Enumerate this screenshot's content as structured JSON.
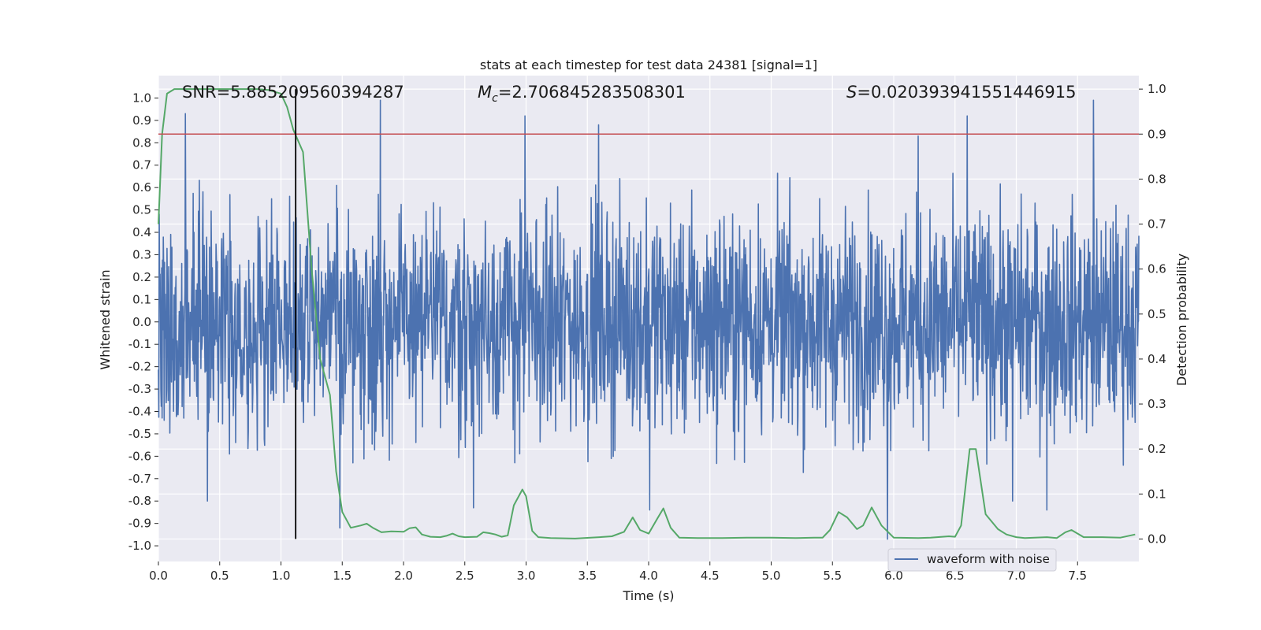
{
  "chart_data": {
    "type": "line",
    "title": "stats at each timestep for test data 24381 [signal=1]",
    "xlabel": "Time (s)",
    "ylabel": "Whitened strain",
    "y2label": "Detection probability",
    "xlim": [
      0,
      8
    ],
    "ylim": [
      -1.07,
      1.1
    ],
    "y2lim": [
      -0.05,
      1.03
    ],
    "xticks": [
      "0.0",
      "0.5",
      "1.0",
      "1.5",
      "2.0",
      "2.5",
      "3.0",
      "3.5",
      "4.0",
      "4.5",
      "5.0",
      "5.5",
      "6.0",
      "6.5",
      "7.0",
      "7.5"
    ],
    "xtick_values": [
      0,
      0.5,
      1,
      1.5,
      2,
      2.5,
      3,
      3.5,
      4,
      4.5,
      5,
      5.5,
      6,
      6.5,
      7,
      7.5
    ],
    "yticks": [
      "1.0",
      "0.9",
      "0.8",
      "0.7",
      "0.6",
      "0.5",
      "0.4",
      "0.3",
      "0.2",
      "0.1",
      "0.0",
      "-0.1",
      "-0.2",
      "-0.3",
      "-0.4",
      "-0.5",
      "-0.6",
      "-0.7",
      "-0.8",
      "-0.9",
      "-1.0"
    ],
    "ytick_values": [
      1,
      0.9,
      0.8,
      0.7,
      0.6,
      0.5,
      0.4,
      0.3,
      0.2,
      0.1,
      0,
      -0.1,
      -0.2,
      -0.3,
      -0.4,
      -0.5,
      -0.6,
      -0.7,
      -0.8,
      -0.9,
      -1.0
    ],
    "y2ticks": [
      "1.0",
      "0.9",
      "0.8",
      "0.7",
      "0.6",
      "0.5",
      "0.4",
      "0.3",
      "0.2",
      "0.1",
      "0.0"
    ],
    "y2tick_values": [
      1,
      0.9,
      0.8,
      0.7,
      0.6,
      0.5,
      0.4,
      0.3,
      0.2,
      0.1,
      0
    ],
    "grid": true,
    "legend_position": "bottom-right",
    "annotations": {
      "snr": "SNR=5.885209560394287",
      "mc_symbol": "M",
      "mc_sub": "c",
      "mc_value": "=2.706845283508301",
      "s_symbol": "S",
      "s_value": "=0.020393941551446915"
    },
    "threshold": {
      "value": 0.9,
      "axis": "y2",
      "color": "#c44e52"
    },
    "marker_time": 1.12,
    "waveform": {
      "name": "waveform with noise",
      "color": "#4c72b0",
      "t_start": 0,
      "t_end": 8,
      "n_samples": 2400,
      "typical_amplitude": 0.45,
      "peaks": [
        {
          "t": 0.22,
          "v": 0.93
        },
        {
          "t": 1.81,
          "v": 0.99
        },
        {
          "t": 2.99,
          "v": 0.92
        },
        {
          "t": 3.59,
          "v": 0.88
        },
        {
          "t": 6.2,
          "v": 0.83
        },
        {
          "t": 6.6,
          "v": 0.92
        },
        {
          "t": 7.63,
          "v": 0.99
        },
        {
          "t": 0.4,
          "v": -0.8
        },
        {
          "t": 2.57,
          "v": -0.83
        },
        {
          "t": 4.01,
          "v": -0.84
        },
        {
          "t": 5.95,
          "v": -0.97
        },
        {
          "t": 6.97,
          "v": -0.8
        },
        {
          "t": 7.25,
          "v": -0.84
        },
        {
          "t": 1.48,
          "v": -0.92
        }
      ]
    },
    "detection": {
      "name": "Detection probability",
      "color": "#55a868",
      "x": [
        0.0,
        0.03,
        0.07,
        0.13,
        0.2,
        0.4,
        0.6,
        0.8,
        0.9,
        1.0,
        1.05,
        1.1,
        1.18,
        1.25,
        1.32,
        1.4,
        1.45,
        1.5,
        1.57,
        1.65,
        1.7,
        1.75,
        1.82,
        1.9,
        2.0,
        2.05,
        2.1,
        2.15,
        2.22,
        2.3,
        2.35,
        2.4,
        2.45,
        2.5,
        2.6,
        2.65,
        2.7,
        2.75,
        2.8,
        2.85,
        2.9,
        2.97,
        3.0,
        3.05,
        3.1,
        3.2,
        3.4,
        3.6,
        3.7,
        3.8,
        3.87,
        3.93,
        4.0,
        4.07,
        4.12,
        4.18,
        4.25,
        4.4,
        4.6,
        4.8,
        5.0,
        5.2,
        5.35,
        5.42,
        5.48,
        5.55,
        5.62,
        5.7,
        5.75,
        5.82,
        5.9,
        6.0,
        6.2,
        6.3,
        6.45,
        6.5,
        6.55,
        6.62,
        6.67,
        6.75,
        6.85,
        6.92,
        7.0,
        7.07,
        7.15,
        7.25,
        7.33,
        7.4,
        7.45,
        7.55,
        7.7,
        7.85,
        7.97
      ],
      "values": [
        0.7,
        0.9,
        0.99,
        1.0,
        1.0,
        1.0,
        1.0,
        1.0,
        0.998,
        0.99,
        0.96,
        0.91,
        0.86,
        0.6,
        0.4,
        0.32,
        0.15,
        0.06,
        0.025,
        0.03,
        0.034,
        0.025,
        0.015,
        0.017,
        0.016,
        0.024,
        0.026,
        0.01,
        0.005,
        0.004,
        0.007,
        0.012,
        0.006,
        0.004,
        0.005,
        0.015,
        0.013,
        0.01,
        0.005,
        0.008,
        0.075,
        0.11,
        0.095,
        0.018,
        0.004,
        0.002,
        0.001,
        0.004,
        0.006,
        0.016,
        0.048,
        0.02,
        0.012,
        0.045,
        0.068,
        0.025,
        0.003,
        0.002,
        0.002,
        0.003,
        0.003,
        0.002,
        0.003,
        0.003,
        0.02,
        0.06,
        0.048,
        0.022,
        0.03,
        0.07,
        0.03,
        0.003,
        0.002,
        0.003,
        0.006,
        0.005,
        0.03,
        0.2,
        0.2,
        0.055,
        0.022,
        0.01,
        0.004,
        0.002,
        0.003,
        0.004,
        0.002,
        0.015,
        0.02,
        0.004,
        0.004,
        0.003,
        0.01
      ]
    }
  }
}
